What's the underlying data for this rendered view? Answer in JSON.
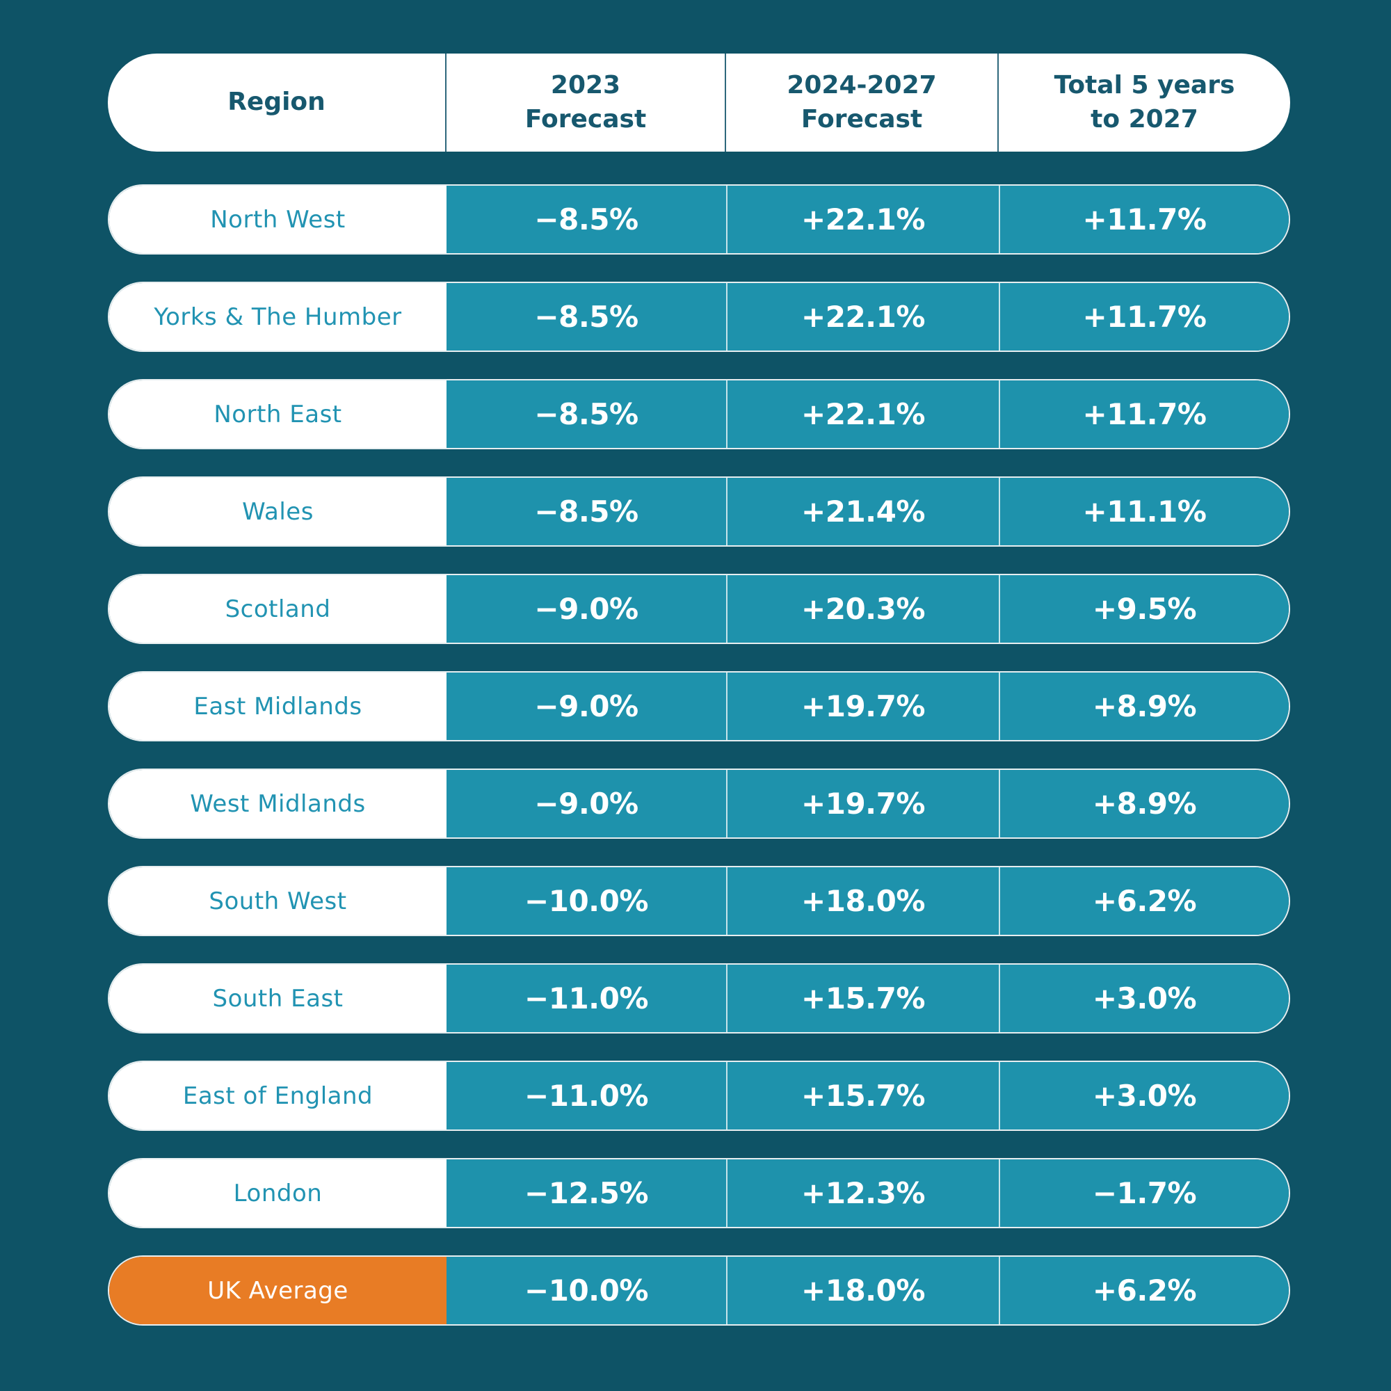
{
  "header": {
    "cells": [
      {
        "line1": "Region",
        "line2": ""
      },
      {
        "line1": "2023",
        "line2": "Forecast"
      },
      {
        "line1": "2024-2027",
        "line2": "Forecast"
      },
      {
        "line1": "Total 5 years",
        "line2": "to 2027"
      }
    ]
  },
  "rows": [
    {
      "region": "North West",
      "f2023": "−8.5%",
      "f2024_2027": "+22.1%",
      "total": "+11.7%",
      "highlight": false
    },
    {
      "region": "Yorks & The Humber",
      "f2023": "−8.5%",
      "f2024_2027": "+22.1%",
      "total": "+11.7%",
      "highlight": false
    },
    {
      "region": "North East",
      "f2023": "−8.5%",
      "f2024_2027": "+22.1%",
      "total": "+11.7%",
      "highlight": false
    },
    {
      "region": "Wales",
      "f2023": "−8.5%",
      "f2024_2027": "+21.4%",
      "total": "+11.1%",
      "highlight": false
    },
    {
      "region": "Scotland",
      "f2023": "−9.0%",
      "f2024_2027": "+20.3%",
      "total": "+9.5%",
      "highlight": false
    },
    {
      "region": "East Midlands",
      "f2023": "−9.0%",
      "f2024_2027": "+19.7%",
      "total": "+8.9%",
      "highlight": false
    },
    {
      "region": "West Midlands",
      "f2023": "−9.0%",
      "f2024_2027": "+19.7%",
      "total": "+8.9%",
      "highlight": false
    },
    {
      "region": "South West",
      "f2023": "−10.0%",
      "f2024_2027": "+18.0%",
      "total": "+6.2%",
      "highlight": false
    },
    {
      "region": "South East",
      "f2023": "−11.0%",
      "f2024_2027": "+15.7%",
      "total": "+3.0%",
      "highlight": false
    },
    {
      "region": "East of England",
      "f2023": "−11.0%",
      "f2024_2027": "+15.7%",
      "total": "+3.0%",
      "highlight": false
    },
    {
      "region": "London",
      "f2023": "−12.5%",
      "f2024_2027": "+12.3%",
      "total": "−1.7%",
      "highlight": false
    },
    {
      "region": "UK Average",
      "f2023": "−10.0%",
      "f2024_2027": "+18.0%",
      "total": "+6.2%",
      "highlight": true
    }
  ],
  "colors": {
    "background": "#0E5366",
    "cell_teal": "#1E92AC",
    "highlight_orange": "#E87C25",
    "region_text": "#2193B2",
    "header_text": "#17586E",
    "value_text": "#FFFFFF"
  },
  "chart_data": {
    "type": "table",
    "categories": [
      "North West",
      "Yorks & The Humber",
      "North East",
      "Wales",
      "Scotland",
      "East Midlands",
      "West Midlands",
      "South West",
      "South East",
      "East of England",
      "London",
      "UK Average"
    ],
    "series": [
      {
        "name": "2023 Forecast",
        "values": [
          -8.5,
          -8.5,
          -8.5,
          -8.5,
          -9.0,
          -9.0,
          -9.0,
          -10.0,
          -11.0,
          -11.0,
          -12.5,
          -10.0
        ]
      },
      {
        "name": "2024-2027 Forecast",
        "values": [
          22.1,
          22.1,
          22.1,
          21.4,
          20.3,
          19.7,
          19.7,
          18.0,
          15.7,
          15.7,
          12.3,
          18.0
        ]
      },
      {
        "name": "Total 5 years to 2027",
        "values": [
          11.7,
          11.7,
          11.7,
          11.1,
          9.5,
          8.9,
          8.9,
          6.2,
          3.0,
          3.0,
          -1.7,
          6.2
        ]
      }
    ],
    "units": "percent",
    "highlighted_row": "UK Average"
  }
}
